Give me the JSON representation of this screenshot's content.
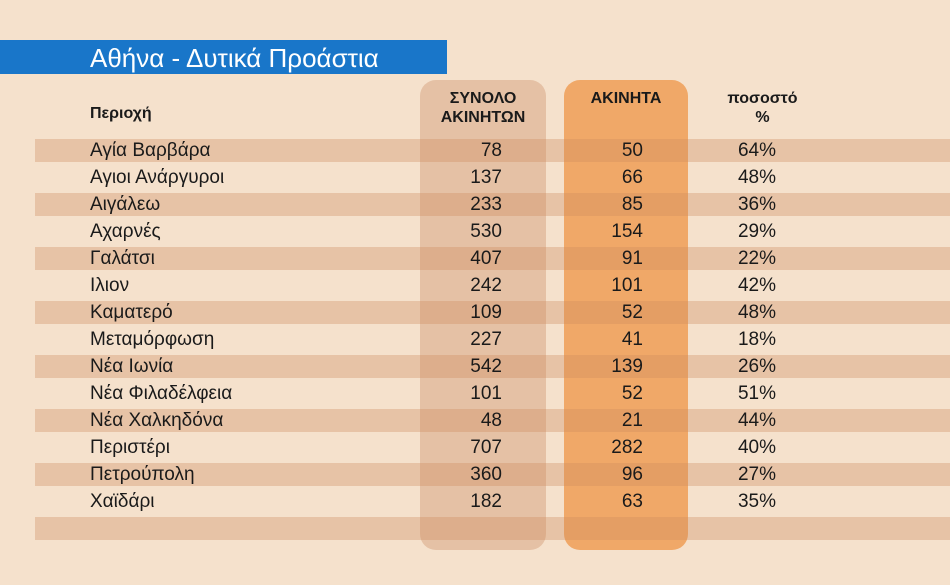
{
  "title": "Αθήνα - Δυτικά Προάστια",
  "colors": {
    "title_bar": "#1976c9",
    "background": "#f5e1cc",
    "total_column": "#e5c1a5",
    "unsold_column": "#f0a868"
  },
  "headers": {
    "region": "Περιοχή",
    "total_line1": "ΣΥΝΟΛΟ",
    "total_line2": "ΑΚΙΝΗΤΩΝ",
    "unsold": "ΑΚΙΝΗΤΑ",
    "pct_line1": "ποσοστό",
    "pct_line2": "%"
  },
  "chart_data": {
    "type": "table",
    "title": "Αθήνα - Δυτικά Προάστια",
    "columns": [
      "Περιοχή",
      "ΣΥΝΟΛΟ ΑΚΙΝΗΤΩΝ",
      "ΑΚΙΝΗΤΑ",
      "ποσοστό %"
    ],
    "rows": [
      [
        "Αγία Βαρβάρα",
        "78",
        "50",
        "64%"
      ],
      [
        "Αγιοι Ανάργυροι",
        "137",
        "66",
        "48%"
      ],
      [
        "Αιγάλεω",
        "233",
        "85",
        "36%"
      ],
      [
        "Αχαρνές",
        "530",
        "154",
        "29%"
      ],
      [
        "Γαλάτσι",
        "407",
        "91",
        "22%"
      ],
      [
        "Ιλιον",
        "242",
        "101",
        "42%"
      ],
      [
        "Καματερό",
        "109",
        "52",
        "48%"
      ],
      [
        "Μεταμόρφωση",
        "227",
        "41",
        "18%"
      ],
      [
        "Νέα Ιωνία",
        "542",
        "139",
        "26%"
      ],
      [
        "Νέα Φιλαδέλφεια",
        "101",
        "52",
        "51%"
      ],
      [
        "Νέα Χαλκηδόνα",
        "48",
        "21",
        "44%"
      ],
      [
        "Περιστέρι",
        "707",
        "282",
        "40%"
      ],
      [
        "Πετρούπολη",
        "360",
        "96",
        "27%"
      ],
      [
        "Χαϊδάρι",
        "182",
        "63",
        "35%"
      ]
    ]
  }
}
